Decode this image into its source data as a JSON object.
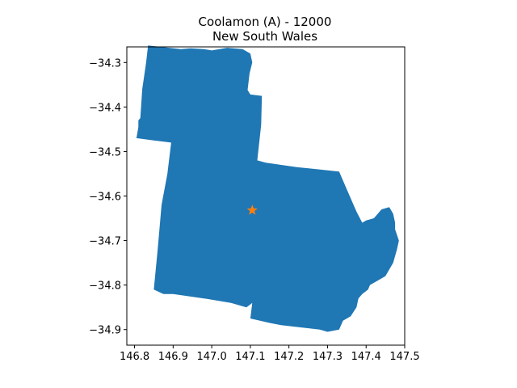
{
  "chart_data": {
    "type": "map",
    "title": [
      "Coolamon (A) - 12000",
      "New South Wales"
    ],
    "xlim": [
      146.78,
      147.5
    ],
    "ylim": [
      -34.935,
      -34.265
    ],
    "xticks": [
      146.8,
      146.9,
      147.0,
      147.1,
      147.2,
      147.3,
      147.4,
      147.5
    ],
    "xtick_labels": [
      "146.8",
      "146.9",
      "147.0",
      "147.1",
      "147.2",
      "147.3",
      "147.4",
      "147.5"
    ],
    "yticks": [
      -34.3,
      -34.4,
      -34.5,
      -34.6,
      -34.7,
      -34.8,
      -34.9
    ],
    "ytick_labels": [
      "−34.3",
      "−34.4",
      "−34.5",
      "−34.6",
      "−34.7",
      "−34.8",
      "−34.9"
    ],
    "region": {
      "name": "Coolamon (A)",
      "fill_color": "#1f77b4",
      "boundary": [
        [
          146.835,
          -34.262
        ],
        [
          146.92,
          -34.27
        ],
        [
          146.945,
          -34.268
        ],
        [
          146.98,
          -34.27
        ],
        [
          147.0,
          -34.273
        ],
        [
          147.04,
          -34.267
        ],
        [
          147.08,
          -34.27
        ],
        [
          147.1,
          -34.28
        ],
        [
          147.105,
          -34.3
        ],
        [
          147.098,
          -34.325
        ],
        [
          147.093,
          -34.362
        ],
        [
          147.1,
          -34.372
        ],
        [
          147.13,
          -34.375
        ],
        [
          147.128,
          -34.44
        ],
        [
          147.118,
          -34.52
        ],
        [
          147.14,
          -34.525
        ],
        [
          147.22,
          -34.535
        ],
        [
          147.33,
          -34.545
        ],
        [
          147.35,
          -34.585
        ],
        [
          147.375,
          -34.635
        ],
        [
          147.39,
          -34.66
        ],
        [
          147.4,
          -34.655
        ],
        [
          147.42,
          -34.65
        ],
        [
          147.43,
          -34.64
        ],
        [
          147.44,
          -34.63
        ],
        [
          147.46,
          -34.625
        ],
        [
          147.47,
          -34.64
        ],
        [
          147.475,
          -34.66
        ],
        [
          147.475,
          -34.675
        ],
        [
          147.485,
          -34.7
        ],
        [
          147.48,
          -34.72
        ],
        [
          147.47,
          -34.75
        ],
        [
          147.45,
          -34.78
        ],
        [
          147.43,
          -34.79
        ],
        [
          147.42,
          -34.795
        ],
        [
          147.41,
          -34.8
        ],
        [
          147.405,
          -34.81
        ],
        [
          147.39,
          -34.82
        ],
        [
          147.38,
          -34.83
        ],
        [
          147.375,
          -34.85
        ],
        [
          147.36,
          -34.87
        ],
        [
          147.34,
          -34.88
        ],
        [
          147.33,
          -34.9
        ],
        [
          147.3,
          -34.905
        ],
        [
          147.28,
          -34.9
        ],
        [
          147.23,
          -34.895
        ],
        [
          147.18,
          -34.89
        ],
        [
          147.15,
          -34.885
        ],
        [
          147.1,
          -34.875
        ],
        [
          147.105,
          -34.84
        ],
        [
          147.09,
          -34.85
        ],
        [
          147.05,
          -34.84
        ],
        [
          146.98,
          -34.83
        ],
        [
          146.9,
          -34.82
        ],
        [
          146.875,
          -34.82
        ],
        [
          146.85,
          -34.81
        ],
        [
          146.86,
          -34.72
        ],
        [
          146.87,
          -34.62
        ],
        [
          146.885,
          -34.55
        ],
        [
          146.895,
          -34.48
        ],
        [
          146.85,
          -34.475
        ],
        [
          146.805,
          -34.47
        ],
        [
          146.81,
          -34.445
        ],
        [
          146.81,
          -34.43
        ],
        [
          146.815,
          -34.425
        ],
        [
          146.82,
          -34.36
        ],
        [
          146.83,
          -34.3
        ]
      ]
    },
    "marker": {
      "shape": "star",
      "color": "#ff7f0e",
      "x": 147.105,
      "y": -34.632
    }
  }
}
